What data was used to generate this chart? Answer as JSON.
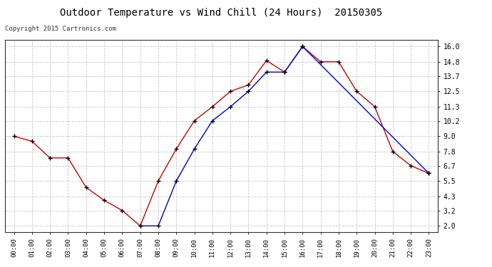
{
  "title": "Outdoor Temperature vs Wind Chill (24 Hours)  20150305",
  "copyright": "Copyright 2015 Cartronics.com",
  "background_color": "#ffffff",
  "grid_color": "#c8c8c8",
  "x_labels": [
    "00:00",
    "01:00",
    "02:00",
    "03:00",
    "04:00",
    "05:00",
    "06:00",
    "07:00",
    "08:00",
    "09:00",
    "10:00",
    "11:00",
    "12:00",
    "13:00",
    "14:00",
    "15:00",
    "16:00",
    "17:00",
    "18:00",
    "19:00",
    "20:00",
    "21:00",
    "22:00",
    "23:00"
  ],
  "y_ticks": [
    2.0,
    3.2,
    4.3,
    5.5,
    6.7,
    7.8,
    9.0,
    10.2,
    11.3,
    12.5,
    13.7,
    14.8,
    16.0
  ],
  "temperature": [
    9.0,
    8.6,
    7.3,
    7.3,
    5.0,
    4.0,
    3.2,
    2.0,
    5.5,
    8.0,
    10.2,
    11.3,
    12.5,
    13.0,
    14.9,
    14.0,
    16.0,
    14.8,
    14.8,
    12.5,
    11.3,
    7.8,
    6.7,
    6.1
  ],
  "wind_chill_x": [
    7,
    8,
    9,
    10,
    11,
    12,
    13,
    14,
    15,
    16,
    23
  ],
  "wind_chill_y": [
    2.0,
    2.0,
    5.5,
    8.0,
    10.2,
    11.3,
    12.5,
    14.0,
    14.0,
    16.0,
    6.1
  ],
  "temp_color": "#cc0000",
  "wind_color": "#0000cc",
  "marker_color": "#000000",
  "ylim": [
    1.5,
    16.5
  ],
  "xlim": [
    -0.5,
    23.5
  ],
  "legend_wind_bg": "#0000bb",
  "legend_temp_bg": "#cc0000"
}
